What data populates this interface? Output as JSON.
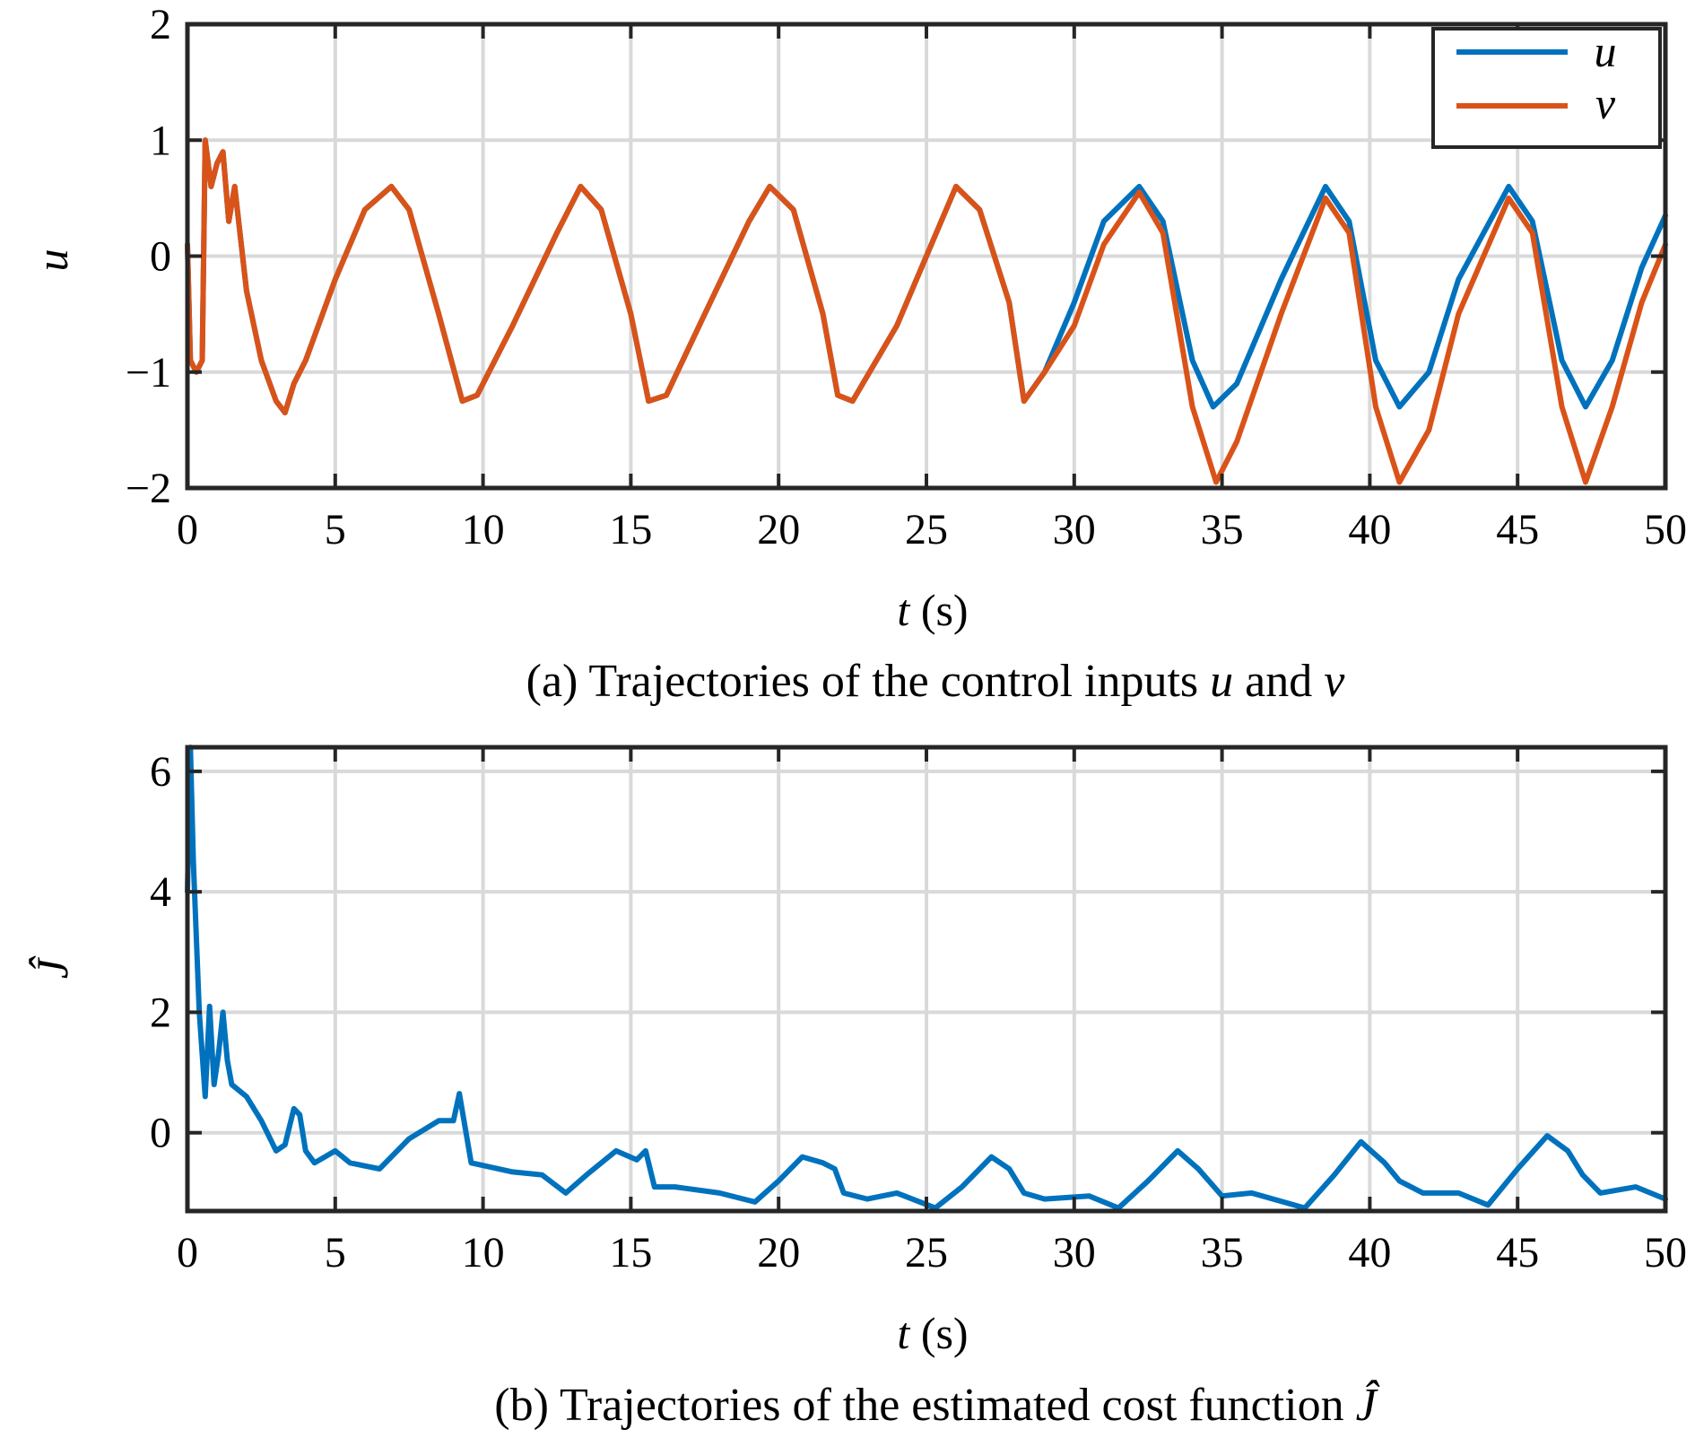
{
  "colors": {
    "u": "#0072BD",
    "v": "#D95319"
  },
  "chart_data": [
    {
      "type": "line",
      "panel": "a",
      "title": "",
      "xlabel_var": "t",
      "xlabel_unit": "(s)",
      "ylabel": "u",
      "xlim": [
        0,
        50
      ],
      "ylim": [
        -2,
        2
      ],
      "xticks": [
        0,
        5,
        10,
        15,
        20,
        25,
        30,
        35,
        40,
        45,
        50
      ],
      "xtick_labels": [
        "0",
        "5",
        "10",
        "15",
        "20",
        "25",
        "30",
        "35",
        "40",
        "45",
        "50"
      ],
      "yticks": [
        -2,
        -1,
        0,
        1,
        2
      ],
      "ytick_labels": [
        "−2",
        "−1",
        "0",
        "1",
        "2"
      ],
      "grid": true,
      "legend": {
        "position": "top-right",
        "entries": [
          "u",
          "v"
        ]
      },
      "caption_prefix": "(a) Trajectories of the control inputs ",
      "caption_var1": "u",
      "caption_mid": " and ",
      "caption_var2": "v",
      "series": [
        {
          "name": "u",
          "color": "#0072BD",
          "x": [
            0,
            0.1,
            0.3,
            0.5,
            0.6,
            0.8,
            1.0,
            1.2,
            1.4,
            1.6,
            2.0,
            2.5,
            3.0,
            3.3,
            3.6,
            4.0,
            5.0,
            6.0,
            6.9,
            7.5,
            8.5,
            9.3,
            9.8,
            11.0,
            12.5,
            13.3,
            14.0,
            15.0,
            15.6,
            16.2,
            17.5,
            19.0,
            19.7,
            20.5,
            21.5,
            22.0,
            22.5,
            24.0,
            25.5,
            26.0,
            26.8,
            27.8,
            28.3,
            29.0,
            30.0,
            31.0,
            32.2,
            33.0,
            34.0,
            34.7,
            35.5,
            37.0,
            38.5,
            39.3,
            40.2,
            41.0,
            42.0,
            43.0,
            44.7,
            45.5,
            46.5,
            47.3,
            48.2,
            49.2,
            50.0
          ],
          "y": [
            0.1,
            -0.9,
            -1.0,
            -0.9,
            1.0,
            0.6,
            0.8,
            0.9,
            0.3,
            0.6,
            -0.3,
            -0.9,
            -1.25,
            -1.35,
            -1.1,
            -0.9,
            -0.2,
            0.4,
            0.6,
            0.4,
            -0.5,
            -1.25,
            -1.2,
            -0.6,
            0.2,
            0.6,
            0.4,
            -0.5,
            -1.25,
            -1.2,
            -0.5,
            0.3,
            0.6,
            0.4,
            -0.5,
            -1.2,
            -1.25,
            -0.6,
            0.3,
            0.6,
            0.4,
            -0.4,
            -1.25,
            -1.0,
            -0.4,
            0.3,
            0.6,
            0.3,
            -0.9,
            -1.3,
            -1.1,
            -0.2,
            0.6,
            0.3,
            -0.9,
            -1.3,
            -1.0,
            -0.2,
            0.6,
            0.3,
            -0.9,
            -1.3,
            -0.9,
            -0.1,
            0.35
          ]
        },
        {
          "name": "v",
          "color": "#D95319",
          "x": [
            0,
            0.1,
            0.3,
            0.5,
            0.6,
            0.8,
            1.0,
            1.2,
            1.4,
            1.6,
            2.0,
            2.5,
            3.0,
            3.3,
            3.6,
            4.0,
            5.0,
            6.0,
            6.9,
            7.5,
            8.5,
            9.3,
            9.8,
            11.0,
            12.5,
            13.3,
            14.0,
            15.0,
            15.6,
            16.2,
            17.5,
            19.0,
            19.7,
            20.5,
            21.5,
            22.0,
            22.5,
            24.0,
            25.5,
            26.0,
            26.8,
            27.8,
            28.3,
            29.0,
            30.0,
            31.0,
            32.2,
            33.0,
            34.0,
            34.8,
            35.5,
            37.0,
            38.5,
            39.3,
            40.2,
            41.0,
            42.0,
            43.0,
            44.7,
            45.5,
            46.5,
            47.3,
            48.2,
            49.2,
            50.0
          ],
          "y": [
            0.1,
            -0.9,
            -1.0,
            -0.9,
            1.0,
            0.6,
            0.8,
            0.9,
            0.3,
            0.6,
            -0.3,
            -0.9,
            -1.25,
            -1.35,
            -1.1,
            -0.9,
            -0.2,
            0.4,
            0.6,
            0.4,
            -0.5,
            -1.25,
            -1.2,
            -0.6,
            0.2,
            0.6,
            0.4,
            -0.5,
            -1.25,
            -1.2,
            -0.5,
            0.3,
            0.6,
            0.4,
            -0.5,
            -1.2,
            -1.25,
            -0.6,
            0.3,
            0.6,
            0.4,
            -0.4,
            -1.25,
            -1.0,
            -0.6,
            0.1,
            0.55,
            0.2,
            -1.3,
            -1.95,
            -1.6,
            -0.5,
            0.5,
            0.2,
            -1.3,
            -1.95,
            -1.5,
            -0.5,
            0.5,
            0.2,
            -1.3,
            -1.95,
            -1.3,
            -0.4,
            0.1
          ]
        }
      ]
    },
    {
      "type": "line",
      "panel": "b",
      "title": "",
      "xlabel_var": "t",
      "xlabel_unit": "(s)",
      "ylabel": "Ĵ",
      "xlim": [
        0,
        50
      ],
      "ylim": [
        -1.3,
        6.4
      ],
      "xticks": [
        0,
        5,
        10,
        15,
        20,
        25,
        30,
        35,
        40,
        45,
        50
      ],
      "xtick_labels": [
        "0",
        "5",
        "10",
        "15",
        "20",
        "25",
        "30",
        "35",
        "40",
        "45",
        "50"
      ],
      "yticks": [
        0,
        2,
        4,
        6
      ],
      "ytick_labels": [
        "0",
        "2",
        "4",
        "6"
      ],
      "grid": true,
      "caption_prefix": "(b) Trajectories of the estimated cost function ",
      "caption_var1": "Ĵ",
      "series": [
        {
          "name": "J-hat",
          "color": "#0072BD",
          "x": [
            0,
            0.1,
            0.2,
            0.4,
            0.6,
            0.75,
            0.9,
            1.05,
            1.2,
            1.35,
            1.5,
            2.0,
            2.5,
            3.0,
            3.3,
            3.6,
            3.8,
            4.0,
            4.3,
            5.0,
            5.5,
            6.5,
            7.5,
            8.5,
            9.0,
            9.2,
            9.6,
            11.0,
            12.0,
            12.8,
            13.5,
            14.5,
            15.2,
            15.5,
            15.8,
            16.5,
            18.0,
            19.2,
            20.0,
            20.8,
            21.5,
            21.9,
            22.2,
            23.0,
            24.0,
            25.3,
            26.2,
            27.2,
            27.8,
            28.3,
            29.0,
            30.5,
            31.5,
            32.5,
            33.5,
            34.2,
            35.0,
            36.0,
            37.8,
            38.8,
            39.7,
            40.5,
            41.0,
            41.8,
            43.0,
            44.0,
            45.0,
            46.0,
            46.7,
            47.2,
            47.8,
            49.0,
            50.0
          ],
          "y": [
            4.0,
            6.4,
            4.5,
            2.0,
            0.6,
            2.1,
            0.8,
            1.3,
            2.0,
            1.2,
            0.8,
            0.6,
            0.2,
            -0.3,
            -0.2,
            0.4,
            0.3,
            -0.3,
            -0.5,
            -0.3,
            -0.5,
            -0.6,
            -0.1,
            0.2,
            0.2,
            0.65,
            -0.5,
            -0.65,
            -0.7,
            -1.0,
            -0.7,
            -0.3,
            -0.45,
            -0.3,
            -0.9,
            -0.9,
            -1.0,
            -1.15,
            -0.8,
            -0.4,
            -0.5,
            -0.6,
            -1.0,
            -1.1,
            -1.0,
            -1.25,
            -0.9,
            -0.4,
            -0.6,
            -1.0,
            -1.1,
            -1.05,
            -1.25,
            -0.8,
            -0.3,
            -0.6,
            -1.05,
            -1.0,
            -1.25,
            -0.7,
            -0.15,
            -0.5,
            -0.8,
            -1.0,
            -1.0,
            -1.2,
            -0.6,
            -0.05,
            -0.3,
            -0.7,
            -1.0,
            -0.9,
            -1.1
          ]
        }
      ]
    }
  ]
}
